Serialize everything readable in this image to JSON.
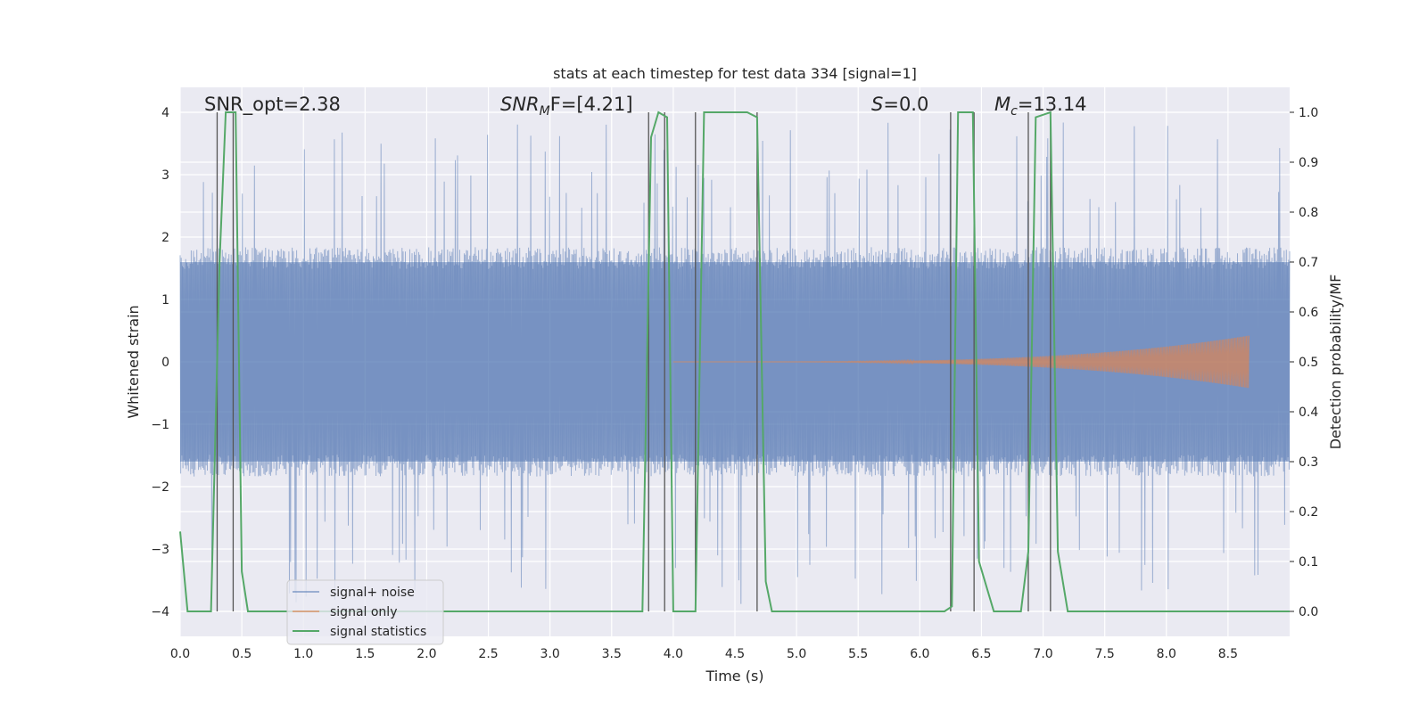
{
  "chart_data": {
    "type": "line",
    "title": "stats at each timestep for test data 334 [signal=1]",
    "xlabel": "Time (s)",
    "ylabel_left": "Whitened strain",
    "ylabel_right": "Detection probability/MF",
    "xlim": [
      0.0,
      9.0
    ],
    "ylim_left": [
      -4.4,
      4.4
    ],
    "ylim_right": [
      -0.05,
      1.05
    ],
    "x_ticks": [
      "0.0",
      "0.5",
      "1.0",
      "1.5",
      "2.0",
      "2.5",
      "3.0",
      "3.5",
      "4.0",
      "4.5",
      "5.0",
      "5.5",
      "6.0",
      "6.5",
      "7.0",
      "7.5",
      "8.0",
      "8.5"
    ],
    "y_ticks_left": [
      "4",
      "3",
      "2",
      "1",
      "0",
      "−1",
      "−2",
      "−3",
      "−4"
    ],
    "y_ticks_right": [
      "1.0",
      "0.9",
      "0.8",
      "0.7",
      "0.6",
      "0.5",
      "0.4",
      "0.3",
      "0.2",
      "0.1",
      "0.0"
    ],
    "grid": true,
    "legend_position": "lower-left",
    "background": "#eaeaf2",
    "annotations": {
      "snr_opt": "SNR_opt=2.38",
      "snr_mf_prefix": "SNR",
      "snr_mf_sub": "M",
      "snr_mf_suffix": "F=[4.21]",
      "s_prefix": "S",
      "s_suffix": "=0.0",
      "mc_prefix": "M",
      "mc_sub": "c",
      "mc_suffix": "=13.14"
    },
    "series": [
      {
        "name": "signal+ noise",
        "color": "#4c72b0",
        "note_envelope": {
          "typical_abs": 1.75,
          "peak_max": 4.0,
          "peak_min": -3.8
        }
      },
      {
        "name": "signal only",
        "color": "#dd8452",
        "chirp": {
          "start": 4.0,
          "end": 8.67,
          "max_amplitude": 0.42
        }
      },
      {
        "name": "signal statistics",
        "color": "#55a868",
        "axis": "right",
        "x": [
          0.0,
          0.06,
          0.25,
          0.32,
          0.37,
          0.45,
          0.5,
          0.55,
          3.75,
          3.82,
          3.88,
          3.95,
          4.0,
          4.18,
          4.25,
          4.6,
          4.68,
          4.75,
          4.8,
          6.2,
          6.26,
          6.31,
          6.43,
          6.48,
          6.6,
          6.82,
          6.88,
          6.94,
          7.06,
          7.12,
          7.2,
          9.0
        ],
        "y": [
          0.16,
          0.0,
          0.0,
          0.7,
          1.0,
          1.0,
          0.08,
          0.0,
          0.0,
          0.95,
          1.0,
          0.99,
          0.0,
          0.0,
          1.0,
          1.0,
          0.99,
          0.06,
          0.0,
          0.0,
          0.01,
          1.0,
          1.0,
          0.1,
          0.0,
          0.0,
          0.12,
          0.99,
          1.0,
          0.12,
          0.0,
          0.0
        ]
      }
    ],
    "vertical_markers": [
      0.3,
      0.43,
      3.8,
      3.93,
      4.18,
      4.68,
      6.25,
      6.44,
      6.88,
      7.06
    ]
  }
}
